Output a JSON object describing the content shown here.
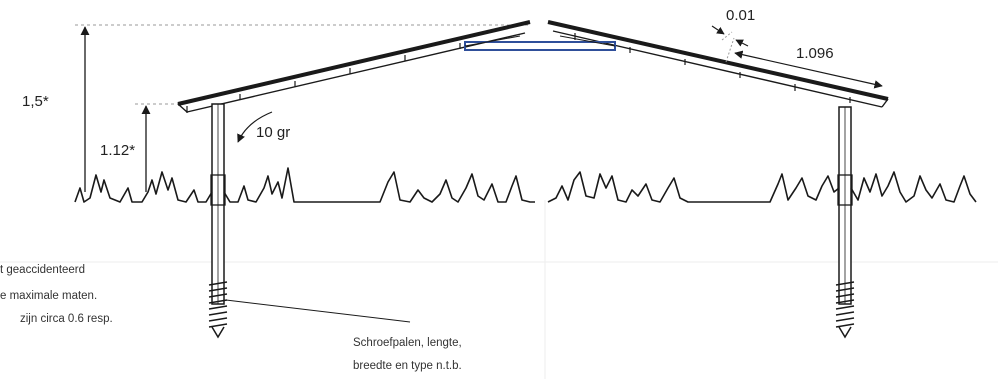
{
  "dimensions": {
    "ridge_height": "1,5*",
    "eave_height": "1.12*",
    "angle": "10 gr",
    "gap": "0.01",
    "panel_length": "1.096"
  },
  "note_left": [
    "t geaccidenteerd",
    "e maximale maten.",
    "zijn circa 0.6 resp."
  ],
  "note_screw": [
    "Schroefpalen, lengte,",
    "breedte en type n.t.b."
  ],
  "colors": {
    "line": "#1a1a1a",
    "ridge_vent": "#2f4f9a",
    "dash": "#9a9a9a"
  }
}
